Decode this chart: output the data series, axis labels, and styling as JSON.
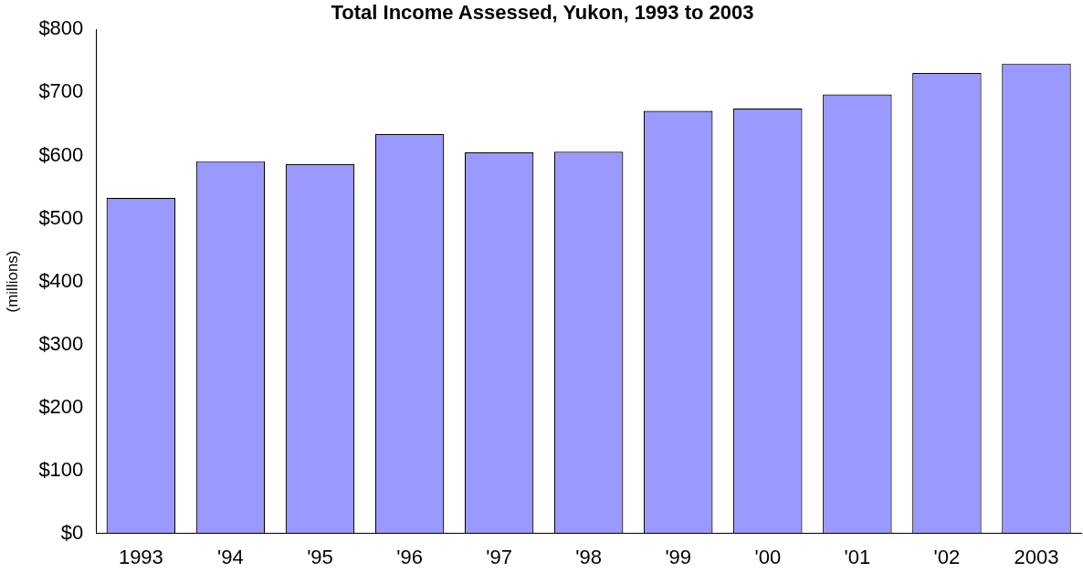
{
  "chart_data": {
    "type": "bar",
    "title": "Total Income Assessed, Yukon, 1993 to 2003",
    "ylabel": "(millions)",
    "categories": [
      "1993",
      "'94",
      "'95",
      "'96",
      "'97",
      "'98",
      "'99",
      "'00",
      "'01",
      "'02",
      "2003"
    ],
    "values": [
      533,
      591,
      586,
      634,
      605,
      606,
      671,
      675,
      697,
      731,
      746
    ],
    "color": "#9999ff",
    "ylim": [
      0,
      800
    ],
    "yticks": [
      {
        "value": 0,
        "label": "$0"
      },
      {
        "value": 100,
        "label": "$100"
      },
      {
        "value": 200,
        "label": "$200"
      },
      {
        "value": 300,
        "label": "$300"
      },
      {
        "value": 400,
        "label": "$400"
      },
      {
        "value": 500,
        "label": "$500"
      },
      {
        "value": 600,
        "label": "$600"
      },
      {
        "value": 700,
        "label": "$700"
      },
      {
        "value": 800,
        "label": "$800"
      }
    ]
  }
}
